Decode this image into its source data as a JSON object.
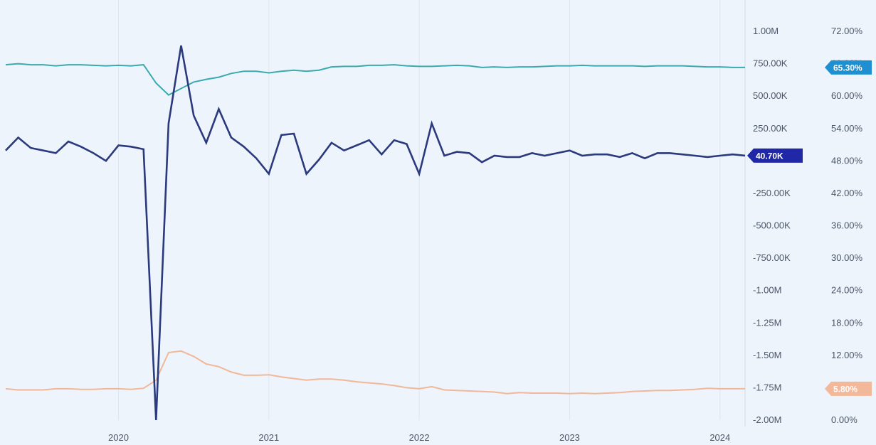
{
  "chart_data": {
    "type": "line",
    "title": "",
    "xlabel": "",
    "ylabel_left": "",
    "ylabel_right": "",
    "x_ticks": [
      "2020",
      "2021",
      "2022",
      "2023",
      "2024"
    ],
    "x_range": [
      "2019-04",
      "2024-03"
    ],
    "y_left": {
      "min": -2000000,
      "max": 1000000,
      "ticks": [
        1000000,
        750000,
        500000,
        250000,
        0,
        -250000,
        -500000,
        -750000,
        -1000000,
        -1250000,
        -1500000,
        -1750000,
        -2000000
      ],
      "tick_labels": [
        "1.00M",
        "750.00K",
        "500.00K",
        "250.00K",
        "",
        "-250.00K",
        "-500.00K",
        "-750.00K",
        "-1.00M",
        "-1.25M",
        "-1.50M",
        "-1.75M",
        "-2.00M"
      ]
    },
    "y_right": {
      "min": 0,
      "max": 72,
      "ticks": [
        72,
        66,
        60,
        54,
        48,
        42,
        36,
        30,
        24,
        18,
        12,
        6,
        0
      ],
      "tick_labels": [
        "72.00%",
        "66.00%",
        "60.00%",
        "54.00%",
        "48.00%",
        "42.00%",
        "36.00%",
        "30.00%",
        "24.00%",
        "18.00%",
        "12.00%",
        "6.00%",
        "0.00%"
      ]
    },
    "grid": "vertical",
    "series": [
      {
        "axis": "left",
        "color": "#2a3a7d",
        "last_label": "40.70K",
        "points": [
          [
            "2019-04",
            80000
          ],
          [
            "2019-05",
            180000
          ],
          [
            "2019-06",
            100000
          ],
          [
            "2019-07",
            80000
          ],
          [
            "2019-08",
            60000
          ],
          [
            "2019-09",
            150000
          ],
          [
            "2019-10",
            110000
          ],
          [
            "2019-11",
            60000
          ],
          [
            "2019-12",
            0
          ],
          [
            "2020-01",
            120000
          ],
          [
            "2020-02",
            110000
          ],
          [
            "2020-03",
            90000
          ],
          [
            "2020-04",
            -2000000
          ],
          [
            "2020-05",
            290000
          ],
          [
            "2020-06",
            890000
          ],
          [
            "2020-07",
            350000
          ],
          [
            "2020-08",
            140000
          ],
          [
            "2020-09",
            400000
          ],
          [
            "2020-10",
            180000
          ],
          [
            "2020-11",
            110000
          ],
          [
            "2020-12",
            20000
          ],
          [
            "2021-01",
            -100000
          ],
          [
            "2021-02",
            200000
          ],
          [
            "2021-03",
            210000
          ],
          [
            "2021-04",
            -100000
          ],
          [
            "2021-05",
            10000
          ],
          [
            "2021-06",
            140000
          ],
          [
            "2021-07",
            80000
          ],
          [
            "2021-08",
            120000
          ],
          [
            "2021-09",
            160000
          ],
          [
            "2021-10",
            50000
          ],
          [
            "2021-11",
            160000
          ],
          [
            "2021-12",
            130000
          ],
          [
            "2022-01",
            -100000
          ],
          [
            "2022-02",
            290000
          ],
          [
            "2022-03",
            40000
          ],
          [
            "2022-04",
            70000
          ],
          [
            "2022-05",
            60000
          ],
          [
            "2022-06",
            -10000
          ],
          [
            "2022-07",
            40000
          ],
          [
            "2022-08",
            30000
          ],
          [
            "2022-09",
            30000
          ],
          [
            "2022-10",
            60000
          ],
          [
            "2022-11",
            40000
          ],
          [
            "2022-12",
            60000
          ],
          [
            "2023-01",
            80000
          ],
          [
            "2023-02",
            40000
          ],
          [
            "2023-03",
            50000
          ],
          [
            "2023-04",
            50000
          ],
          [
            "2023-05",
            30000
          ],
          [
            "2023-06",
            60000
          ],
          [
            "2023-07",
            20000
          ],
          [
            "2023-08",
            60000
          ],
          [
            "2023-09",
            60000
          ],
          [
            "2023-10",
            50000
          ],
          [
            "2023-11",
            40000
          ],
          [
            "2023-12",
            30000
          ],
          [
            "2024-01",
            40000
          ],
          [
            "2024-02",
            50000
          ],
          [
            "2024-03",
            40700
          ]
        ]
      },
      {
        "axis": "right",
        "color": "#3aaab0",
        "last_label": "65.30%",
        "points": [
          [
            "2019-04",
            65.8
          ],
          [
            "2019-05",
            66.0
          ],
          [
            "2019-06",
            65.8
          ],
          [
            "2019-07",
            65.8
          ],
          [
            "2019-08",
            65.6
          ],
          [
            "2019-09",
            65.8
          ],
          [
            "2019-10",
            65.8
          ],
          [
            "2019-11",
            65.7
          ],
          [
            "2019-12",
            65.6
          ],
          [
            "2020-01",
            65.7
          ],
          [
            "2020-02",
            65.6
          ],
          [
            "2020-03",
            65.8
          ],
          [
            "2020-04",
            62.4
          ],
          [
            "2020-05",
            60.2
          ],
          [
            "2020-06",
            61.4
          ],
          [
            "2020-07",
            62.6
          ],
          [
            "2020-08",
            63.1
          ],
          [
            "2020-09",
            63.5
          ],
          [
            "2020-10",
            64.2
          ],
          [
            "2020-11",
            64.6
          ],
          [
            "2020-12",
            64.6
          ],
          [
            "2021-01",
            64.3
          ],
          [
            "2021-02",
            64.6
          ],
          [
            "2021-03",
            64.8
          ],
          [
            "2021-04",
            64.6
          ],
          [
            "2021-05",
            64.8
          ],
          [
            "2021-06",
            65.4
          ],
          [
            "2021-07",
            65.5
          ],
          [
            "2021-08",
            65.5
          ],
          [
            "2021-09",
            65.7
          ],
          [
            "2021-10",
            65.7
          ],
          [
            "2021-11",
            65.8
          ],
          [
            "2021-12",
            65.6
          ],
          [
            "2022-01",
            65.5
          ],
          [
            "2022-02",
            65.5
          ],
          [
            "2022-03",
            65.6
          ],
          [
            "2022-04",
            65.7
          ],
          [
            "2022-05",
            65.6
          ],
          [
            "2022-06",
            65.3
          ],
          [
            "2022-07",
            65.4
          ],
          [
            "2022-08",
            65.3
          ],
          [
            "2022-09",
            65.4
          ],
          [
            "2022-10",
            65.4
          ],
          [
            "2022-11",
            65.5
          ],
          [
            "2022-12",
            65.6
          ],
          [
            "2023-01",
            65.6
          ],
          [
            "2023-02",
            65.7
          ],
          [
            "2023-03",
            65.6
          ],
          [
            "2023-04",
            65.6
          ],
          [
            "2023-05",
            65.6
          ],
          [
            "2023-06",
            65.6
          ],
          [
            "2023-07",
            65.5
          ],
          [
            "2023-08",
            65.6
          ],
          [
            "2023-09",
            65.6
          ],
          [
            "2023-10",
            65.6
          ],
          [
            "2023-11",
            65.5
          ],
          [
            "2023-12",
            65.4
          ],
          [
            "2024-01",
            65.4
          ],
          [
            "2024-02",
            65.3
          ],
          [
            "2024-03",
            65.3
          ]
        ]
      },
      {
        "axis": "right",
        "color": "#f0b898",
        "last_label": "5.80%",
        "points": [
          [
            "2019-04",
            5.8
          ],
          [
            "2019-05",
            5.6
          ],
          [
            "2019-06",
            5.6
          ],
          [
            "2019-07",
            5.6
          ],
          [
            "2019-08",
            5.8
          ],
          [
            "2019-09",
            5.8
          ],
          [
            "2019-10",
            5.7
          ],
          [
            "2019-11",
            5.7
          ],
          [
            "2019-12",
            5.8
          ],
          [
            "2020-01",
            5.8
          ],
          [
            "2020-02",
            5.7
          ],
          [
            "2020-03",
            5.9
          ],
          [
            "2020-04",
            7.4
          ],
          [
            "2020-05",
            12.5
          ],
          [
            "2020-06",
            12.8
          ],
          [
            "2020-07",
            11.8
          ],
          [
            "2020-08",
            10.4
          ],
          [
            "2020-09",
            9.9
          ],
          [
            "2020-10",
            8.9
          ],
          [
            "2020-11",
            8.3
          ],
          [
            "2020-12",
            8.3
          ],
          [
            "2021-01",
            8.4
          ],
          [
            "2021-02",
            8.0
          ],
          [
            "2021-03",
            7.7
          ],
          [
            "2021-04",
            7.4
          ],
          [
            "2021-05",
            7.6
          ],
          [
            "2021-06",
            7.6
          ],
          [
            "2021-07",
            7.4
          ],
          [
            "2021-08",
            7.1
          ],
          [
            "2021-09",
            6.9
          ],
          [
            "2021-10",
            6.7
          ],
          [
            "2021-11",
            6.4
          ],
          [
            "2021-12",
            6.0
          ],
          [
            "2022-01",
            5.8
          ],
          [
            "2022-02",
            6.2
          ],
          [
            "2022-03",
            5.6
          ],
          [
            "2022-04",
            5.5
          ],
          [
            "2022-05",
            5.4
          ],
          [
            "2022-06",
            5.3
          ],
          [
            "2022-07",
            5.2
          ],
          [
            "2022-08",
            4.9
          ],
          [
            "2022-09",
            5.1
          ],
          [
            "2022-10",
            5.0
          ],
          [
            "2022-11",
            5.0
          ],
          [
            "2022-12",
            5.0
          ],
          [
            "2023-01",
            4.9
          ],
          [
            "2023-02",
            5.0
          ],
          [
            "2023-03",
            4.9
          ],
          [
            "2023-04",
            5.0
          ],
          [
            "2023-05",
            5.1
          ],
          [
            "2023-06",
            5.3
          ],
          [
            "2023-07",
            5.4
          ],
          [
            "2023-08",
            5.5
          ],
          [
            "2023-09",
            5.5
          ],
          [
            "2023-10",
            5.6
          ],
          [
            "2023-11",
            5.7
          ],
          [
            "2023-12",
            5.9
          ],
          [
            "2024-01",
            5.8
          ],
          [
            "2024-02",
            5.8
          ],
          [
            "2024-03",
            5.8
          ]
        ]
      }
    ]
  }
}
